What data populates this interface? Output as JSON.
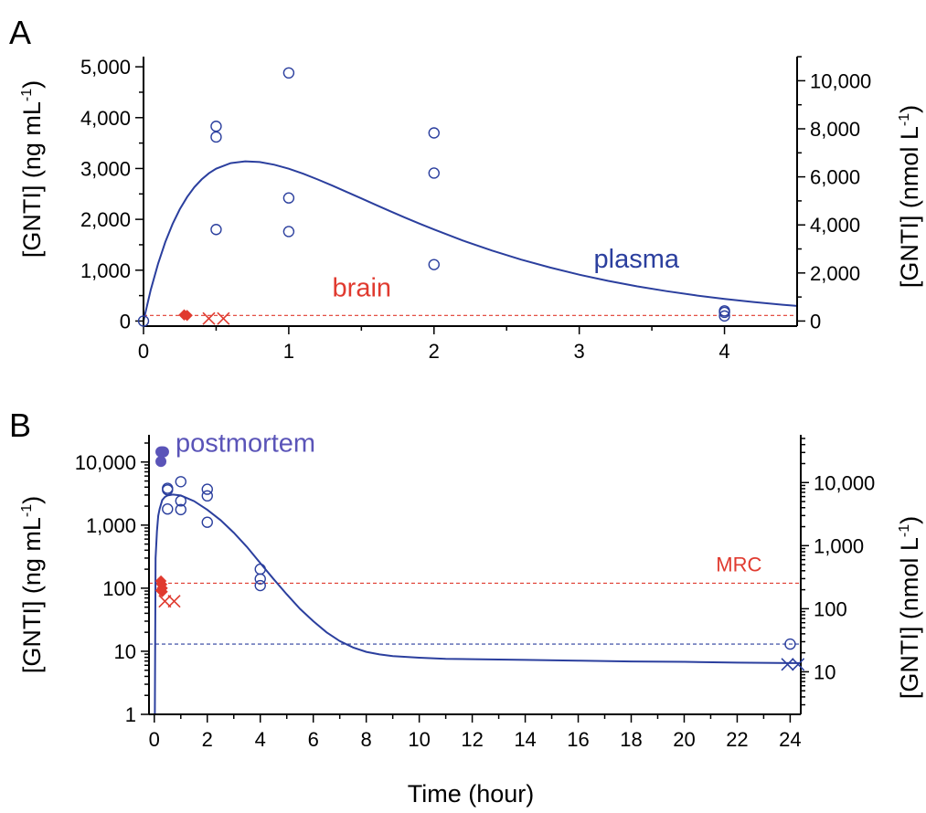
{
  "chart_data": [
    {
      "panel": "A",
      "type": "scatter",
      "xlabel": "",
      "ylabel": "[GNTI] (ng mL",
      "ylabel_sup": "-1",
      "ylabel_close": ")",
      "y2label": "[GNTI] (nmol L",
      "y2label_sup": "-1",
      "y2label_close": ")",
      "xlim": [
        0,
        4.5
      ],
      "ylim": [
        -100,
        5200
      ],
      "y2_per_y": 2.116,
      "x_ticks": [
        0,
        1,
        2,
        3,
        4
      ],
      "x_tick_labels": [
        "0",
        "1",
        "2",
        "3",
        "4"
      ],
      "y_ticks": [
        0,
        1000,
        2000,
        3000,
        4000,
        5000
      ],
      "y_tick_labels": [
        "0",
        "1,000",
        "2,000",
        "3,000",
        "4,000",
        "5,000"
      ],
      "y2_ticks": [
        0,
        2000,
        4000,
        6000,
        8000,
        10000
      ],
      "y2_tick_labels": [
        "0",
        "2,000",
        "4,000",
        "6,000",
        "8,000",
        "10,000"
      ],
      "colors": {
        "plasma": "#2b3f9e",
        "brain": "#e03a2f"
      },
      "annotations": [
        {
          "text": "plasma",
          "x": 3.1,
          "y": 1050,
          "color": "#2b3f9e"
        },
        {
          "text": "brain",
          "x": 1.3,
          "y": 480,
          "color": "#e03a2f"
        }
      ],
      "series": [
        {
          "role": "plasma-points",
          "marker": "open-circle",
          "color": "#2b3f9e",
          "x": [
            0,
            0.5,
            0.5,
            0.5,
            1,
            1,
            1,
            2,
            2,
            2,
            4,
            4,
            4
          ],
          "y": [
            0,
            3830,
            3620,
            1800,
            4880,
            2420,
            1760,
            3700,
            2910,
            1110,
            200,
            170,
            100
          ]
        },
        {
          "role": "brain-points",
          "marker": "filled-diamond",
          "color": "#e03a2f",
          "x": [
            0.28,
            0.3
          ],
          "y": [
            120,
            110
          ]
        },
        {
          "role": "brain-undetected",
          "marker": "x",
          "color": "#e03a2f",
          "x": [
            0.45,
            0.55
          ],
          "y": [
            50,
            50
          ]
        },
        {
          "role": "plasma-fit",
          "marker": "line",
          "color": "#2b3f9e",
          "x": [
            0,
            0.05,
            0.1,
            0.15,
            0.2,
            0.25,
            0.3,
            0.35,
            0.4,
            0.45,
            0.5,
            0.6,
            0.7,
            0.8,
            0.9,
            1.0,
            1.1,
            1.2,
            1.3,
            1.4,
            1.5,
            1.6,
            1.7,
            1.8,
            1.9,
            2.0,
            2.2,
            2.4,
            2.6,
            2.8,
            3.0,
            3.2,
            3.4,
            3.6,
            3.8,
            4.0,
            4.2,
            4.4,
            4.5
          ],
          "y": [
            0,
            613,
            1126,
            1553,
            1908,
            2200,
            2439,
            2632,
            2786,
            2905,
            2996,
            3105,
            3141,
            3127,
            3075,
            2995,
            2896,
            2784,
            2664,
            2538,
            2411,
            2284,
            2158,
            2035,
            1915,
            1800,
            1582,
            1385,
            1208,
            1051,
            912,
            789,
            682,
            588,
            506,
            436,
            374,
            321,
            297
          ]
        },
        {
          "role": "brain-level",
          "marker": "dashed",
          "color": "#e03a2f",
          "x": [
            0,
            4.5
          ],
          "y": [
            110,
            110
          ]
        }
      ]
    },
    {
      "panel": "B",
      "type": "scatter",
      "xlabel": "Time (hour)",
      "ylabel": "[GNTI] (ng mL",
      "ylabel_sup": "-1",
      "ylabel_close": ")",
      "y2label": "[GNTI] (nmol L",
      "y2label_sup": "-1",
      "y2label_close": ")",
      "y_scale": "log",
      "xlim": [
        -0.2,
        24.4
      ],
      "ylim": [
        1,
        27000
      ],
      "y2_per_y": 2.116,
      "x_ticks": [
        0,
        2,
        4,
        6,
        8,
        10,
        12,
        14,
        16,
        18,
        20,
        22,
        24
      ],
      "x_tick_labels": [
        "0",
        "2",
        "4",
        "6",
        "8",
        "10",
        "12",
        "14",
        "16",
        "18",
        "20",
        "22",
        "24"
      ],
      "y_ticks": [
        1,
        10,
        100,
        1000,
        10000
      ],
      "y_tick_labels": [
        "1",
        "10",
        "100",
        "1,000",
        "10,000"
      ],
      "y2_ticks": [
        10,
        100,
        1000,
        10000
      ],
      "y2_tick_labels": [
        "10",
        "100",
        "1,000",
        "10,000"
      ],
      "colors": {
        "plasma": "#2b3f9e",
        "brain": "#e03a2f",
        "postmortem": "#5a54b8"
      },
      "annotations": [
        {
          "text": "postmortem",
          "x": 0.8,
          "y": 14500,
          "color": "#5a54b8"
        },
        {
          "text": "MRC",
          "x": 21.2,
          "y": 185,
          "color": "#e03a2f"
        }
      ],
      "series": [
        {
          "role": "postmortem-points",
          "marker": "filled-circle",
          "color": "#5a54b8",
          "x": [
            0.25,
            0.3,
            0.35,
            0.25
          ],
          "y": [
            14500,
            14500,
            14500,
            10200
          ]
        },
        {
          "role": "plasma-points",
          "marker": "open-circle",
          "color": "#2b3f9e",
          "x": [
            0.5,
            0.5,
            0.5,
            1,
            1,
            1,
            2,
            2,
            2,
            4,
            4,
            4,
            24
          ],
          "y": [
            3830,
            3620,
            1800,
            4880,
            2420,
            1760,
            3700,
            2910,
            1110,
            200,
            140,
            110,
            13
          ]
        },
        {
          "role": "brain-points",
          "marker": "filled-diamond",
          "color": "#e03a2f",
          "x": [
            0.25,
            0.28,
            0.3,
            0.25,
            0.3
          ],
          "y": [
            130,
            115,
            100,
            92,
            88
          ]
        },
        {
          "role": "brain-undetected",
          "marker": "x",
          "color": "#e03a2f",
          "x": [
            0.4,
            0.75
          ],
          "y": [
            62,
            62
          ]
        },
        {
          "role": "plasma-undetected",
          "marker": "x",
          "color": "#2b3f9e",
          "x": [
            23.9,
            24.3
          ],
          "y": [
            6.2,
            6.2
          ]
        },
        {
          "role": "plasma-fit",
          "marker": "line",
          "color": "#2b3f9e",
          "x": [
            0.02,
            0.05,
            0.1,
            0.15,
            0.2,
            0.3,
            0.4,
            0.5,
            0.7,
            1.0,
            1.5,
            2.0,
            2.5,
            3.0,
            3.5,
            4.0,
            4.5,
            5.0,
            5.5,
            6.0,
            6.5,
            7.0,
            7.5,
            8.0,
            8.5,
            9.0,
            10,
            11,
            12,
            14,
            16,
            18,
            20,
            22,
            24,
            24.4
          ],
          "y": [
            1,
            300,
            800,
            1400,
            1800,
            2500,
            2800,
            2950,
            3050,
            2950,
            2400,
            1750,
            1200,
            760,
            450,
            250,
            140,
            80,
            47,
            30,
            20,
            14.5,
            11.5,
            9.8,
            8.9,
            8.4,
            7.9,
            7.6,
            7.5,
            7.3,
            7.1,
            6.9,
            6.8,
            6.6,
            6.5,
            6.5
          ]
        },
        {
          "role": "MRC-level",
          "marker": "dashed",
          "color": "#e03a2f",
          "x": [
            -0.2,
            24.4
          ],
          "y": [
            120,
            120
          ]
        },
        {
          "role": "plasma-limit",
          "marker": "dashed",
          "color": "#2b3f9e",
          "x": [
            -0.2,
            24.4
          ],
          "y": [
            13,
            13
          ]
        }
      ]
    }
  ]
}
